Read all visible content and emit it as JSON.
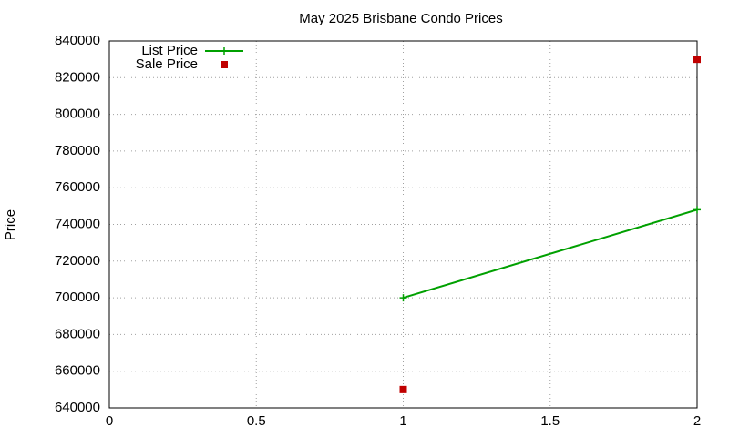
{
  "chart_data": {
    "type": "line",
    "title": "May 2025 Brisbane Condo Prices",
    "y_label": "Price",
    "series": [
      {
        "name": "List Price",
        "type": "line",
        "color": "#00a000",
        "x": [
          1,
          2
        ],
        "values": [
          700000,
          748000
        ]
      },
      {
        "name": "Sale Price",
        "type": "scatter",
        "color": "#c00000",
        "x": [
          1,
          2
        ],
        "values": [
          650000,
          830000
        ]
      }
    ],
    "xlim": [
      0,
      2
    ],
    "xticks": [
      0,
      0.5,
      1,
      1.5,
      2
    ],
    "ylim": [
      640000,
      840000
    ],
    "yticks": [
      640000,
      660000,
      680000,
      700000,
      720000,
      740000,
      760000,
      780000,
      800000,
      820000,
      840000
    ],
    "grid": true,
    "legend": "top-left"
  }
}
